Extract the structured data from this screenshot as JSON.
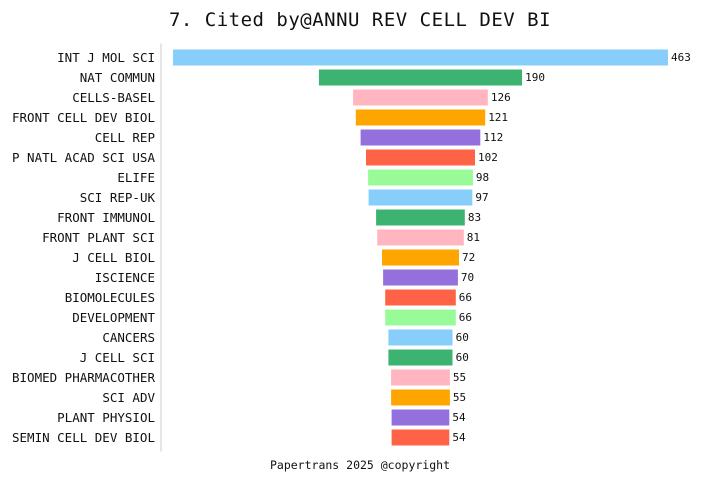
{
  "chart_data": {
    "type": "bar",
    "orientation": "horizontal",
    "layout": "centered-funnel",
    "title": "7. Cited by@ANNU REV CELL DEV BI",
    "categories": [
      "INT J MOL SCI",
      "NAT COMMUN",
      "CELLS-BASEL",
      "FRONT CELL DEV BIOL",
      "CELL REP",
      "P NATL ACAD SCI USA",
      "ELIFE",
      "SCI REP-UK",
      "FRONT IMMUNOL",
      "FRONT PLANT SCI",
      "J CELL BIOL",
      "ISCIENCE",
      "BIOMOLECULES",
      "DEVELOPMENT",
      "CANCERS",
      "J CELL SCI",
      "BIOMED PHARMACOTHER",
      "SCI ADV",
      "PLANT PHYSIOL",
      "SEMIN CELL DEV BIOL"
    ],
    "values": [
      463,
      190,
      126,
      121,
      112,
      102,
      98,
      97,
      83,
      81,
      72,
      70,
      66,
      66,
      60,
      60,
      55,
      55,
      54,
      54
    ],
    "colors": [
      "#87cefa",
      "#3cb371",
      "#ffb6c1",
      "#ffa500",
      "#9370db",
      "#ff6347",
      "#98fb98",
      "#87cefa",
      "#3cb371",
      "#ffb6c1",
      "#ffa500",
      "#9370db",
      "#ff6347",
      "#98fb98",
      "#87cefa",
      "#3cb371",
      "#ffb6c1",
      "#ffa500",
      "#9370db",
      "#ff6347"
    ],
    "xlabel": "",
    "ylabel": "",
    "grid": false,
    "legend": "none"
  },
  "footer": "Papertrans 2025 @copyright"
}
